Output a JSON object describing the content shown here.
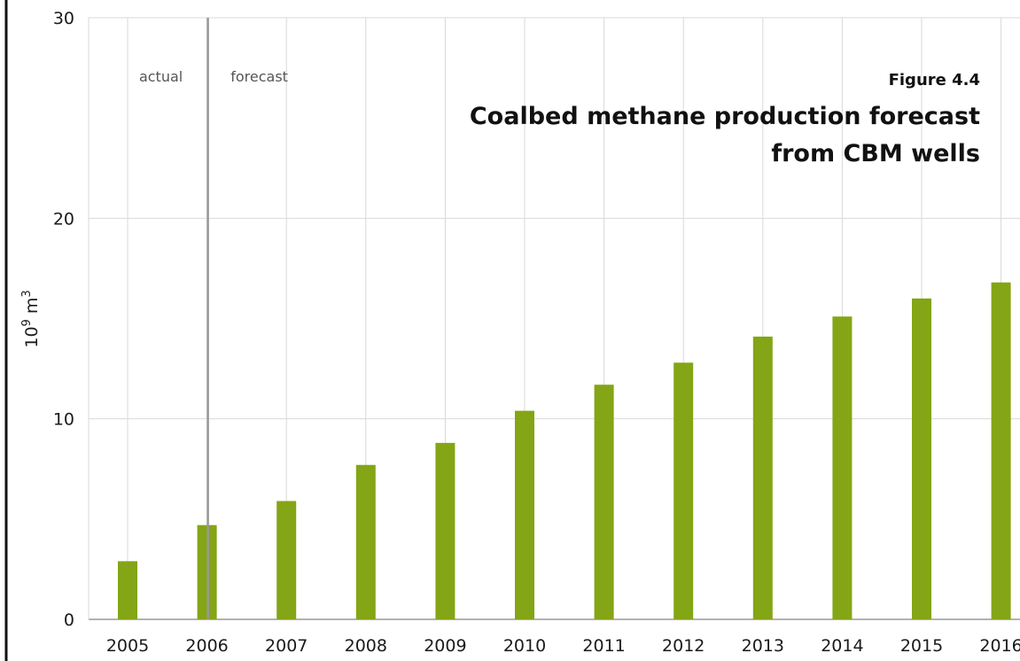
{
  "figure_label": "Figure 4.4",
  "chart_data": {
    "type": "bar",
    "title": "Coalbed methane production forecast from CBM wells",
    "title_lines": [
      "Coalbed methane production forecast",
      "from CBM wells"
    ],
    "xlabel": "",
    "ylabel_base": "10",
    "ylabel_exp": "9",
    "ylabel_unit": "m",
    "ylabel_unit_exp": "3",
    "categories": [
      "2005",
      "2006",
      "2007",
      "2008",
      "2009",
      "2010",
      "2011",
      "2012",
      "2013",
      "2014",
      "2015",
      "2016"
    ],
    "values": [
      2.9,
      4.7,
      5.9,
      7.7,
      8.8,
      10.4,
      11.7,
      12.8,
      14.1,
      15.1,
      16.0,
      16.8
    ],
    "ylim": [
      0,
      30
    ],
    "yticks": [
      "0",
      "10",
      "20",
      "30"
    ],
    "grid": true,
    "bar_color": "#84a515",
    "divider_after_category": "2006",
    "annotations": {
      "left": "actual",
      "right": "forecast"
    }
  }
}
